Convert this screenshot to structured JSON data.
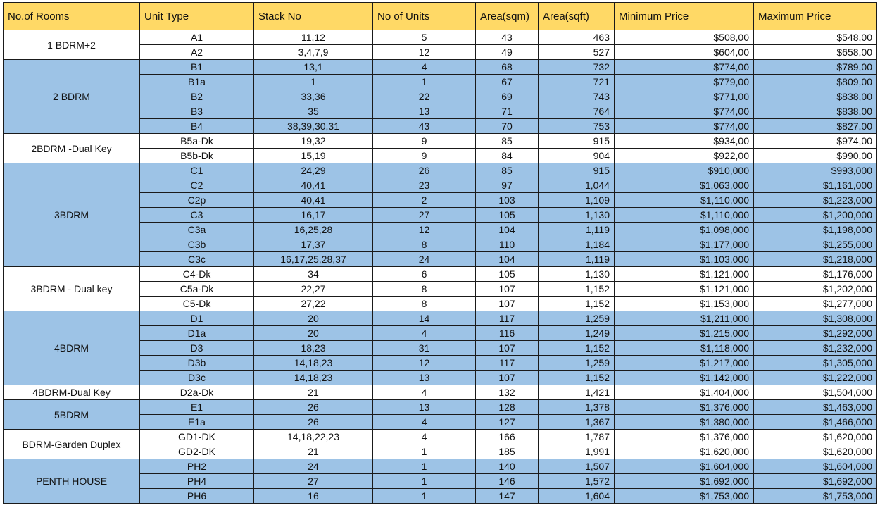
{
  "headers": [
    "No.of Rooms",
    "Unit Type",
    "Stack No",
    "No of Units",
    "Area(sqm)",
    "Area(sqft)",
    "Minimum Price",
    "Maximum Price"
  ],
  "groups": [
    {
      "label": "1 BDRM+2",
      "rows": [
        [
          "A1",
          "11,12",
          "5",
          "43",
          "463",
          "$508,00",
          "$548,00"
        ],
        [
          "A2",
          "3,4,7,9",
          "12",
          "49",
          "527",
          "$604,00",
          "$658,00"
        ]
      ]
    },
    {
      "label": "2 BDRM",
      "rows": [
        [
          "B1",
          "13,1",
          "4",
          "68",
          "732",
          "$774,00",
          "$789,00"
        ],
        [
          "B1a",
          "1",
          "1",
          "67",
          "721",
          "$779,00",
          "$809,00"
        ],
        [
          "B2",
          "33,36",
          "22",
          "69",
          "743",
          "$771,00",
          "$838,00"
        ],
        [
          "B3",
          "35",
          "13",
          "71",
          "764",
          "$774,00",
          "$838,00"
        ],
        [
          "B4",
          "38,39,30,31",
          "43",
          "70",
          "753",
          "$774,00",
          "$827,00"
        ]
      ]
    },
    {
      "label": "2BDRM -Dual Key",
      "rows": [
        [
          "B5a-Dk",
          "19,32",
          "9",
          "85",
          "915",
          "$934,00",
          "$974,00"
        ],
        [
          "B5b-Dk",
          "15,19",
          "9",
          "84",
          "904",
          "$922,00",
          "$990,00"
        ]
      ]
    },
    {
      "label": "3BDRM",
      "rows": [
        [
          "C1",
          "24,29",
          "26",
          "85",
          "915",
          "$910,000",
          "$993,000"
        ],
        [
          "C2",
          "40,41",
          "23",
          "97",
          "1,044",
          "$1,063,000",
          "$1,161,000"
        ],
        [
          "C2p",
          "40,41",
          "2",
          "103",
          "1,109",
          "$1,110,000",
          "$1,223,000"
        ],
        [
          "C3",
          "16,17",
          "27",
          "105",
          "1,130",
          "$1,110,000",
          "$1,200,000"
        ],
        [
          "C3a",
          "16,25,28",
          "12",
          "104",
          "1,119",
          "$1,098,000",
          "$1,198,000"
        ],
        [
          "C3b",
          "17,37",
          "8",
          "110",
          "1,184",
          "$1,177,000",
          "$1,255,000"
        ],
        [
          "C3c",
          "16,17,25,28,37",
          "24",
          "104",
          "1,119",
          "$1,103,000",
          "$1,218,000"
        ]
      ]
    },
    {
      "label": "3BDRM - Dual key",
      "rows": [
        [
          "C4-Dk",
          "34",
          "6",
          "105",
          "1,130",
          "$1,121,000",
          "$1,176,000"
        ],
        [
          "C5a-Dk",
          "22,27",
          "8",
          "107",
          "1,152",
          "$1,121,000",
          "$1,202,000"
        ],
        [
          "C5-Dk",
          "27,22",
          "8",
          "107",
          "1,152",
          "$1,153,000",
          "$1,277,000"
        ]
      ]
    },
    {
      "label": "4BDRM",
      "rows": [
        [
          "D1",
          "20",
          "14",
          "117",
          "1,259",
          "$1,211,000",
          "$1,308,000"
        ],
        [
          "D1a",
          "20",
          "4",
          "116",
          "1,249",
          "$1,215,000",
          "$1,292,000"
        ],
        [
          "D3",
          "18,23",
          "31",
          "107",
          "1,152",
          "$1,118,000",
          "$1,232,000"
        ],
        [
          "D3b",
          "14,18,23",
          "12",
          "117",
          "1,259",
          "$1,217,000",
          "$1,305,000"
        ],
        [
          "D3c",
          "14,18,23",
          "13",
          "107",
          "1,152",
          "$1,142,000",
          "$1,222,000"
        ]
      ]
    },
    {
      "label": "4BDRM-Dual Key",
      "rows": [
        [
          "D2a-Dk",
          "21",
          "4",
          "132",
          "1,421",
          "$1,404,000",
          "$1,504,000"
        ]
      ]
    },
    {
      "label": "5BDRM",
      "rows": [
        [
          "E1",
          "26",
          "13",
          "128",
          "1,378",
          "$1,376,000",
          "$1,463,000"
        ],
        [
          "E1a",
          "26",
          "4",
          "127",
          "1,367",
          "$1,380,000",
          "$1,466,000"
        ]
      ]
    },
    {
      "label": "BDRM-Garden Duplex",
      "rows": [
        [
          "GD1-DK",
          "14,18,22,23",
          "4",
          "166",
          "1,787",
          "$1,376,000",
          "$1,620,000"
        ],
        [
          "GD2-DK",
          "21",
          "1",
          "185",
          "1,991",
          "$1,620,000",
          "$1,620,000"
        ]
      ]
    },
    {
      "label": "PENTH HOUSE",
      "rows": [
        [
          "PH2",
          "24",
          "1",
          "140",
          "1,507",
          "$1,604,000",
          "$1,604,000"
        ],
        [
          "PH4",
          "27",
          "1",
          "146",
          "1,572",
          "$1,692,000",
          "$1,692,000"
        ],
        [
          "PH6",
          "16",
          "1",
          "147",
          "1,604",
          "$1,753,000",
          "$1,753,000"
        ]
      ]
    }
  ],
  "colors": {
    "header": "#FFD966",
    "blue_band": "#9DC3E6",
    "white_band": "#FFFFFF",
    "border": "#1A1A1A"
  }
}
